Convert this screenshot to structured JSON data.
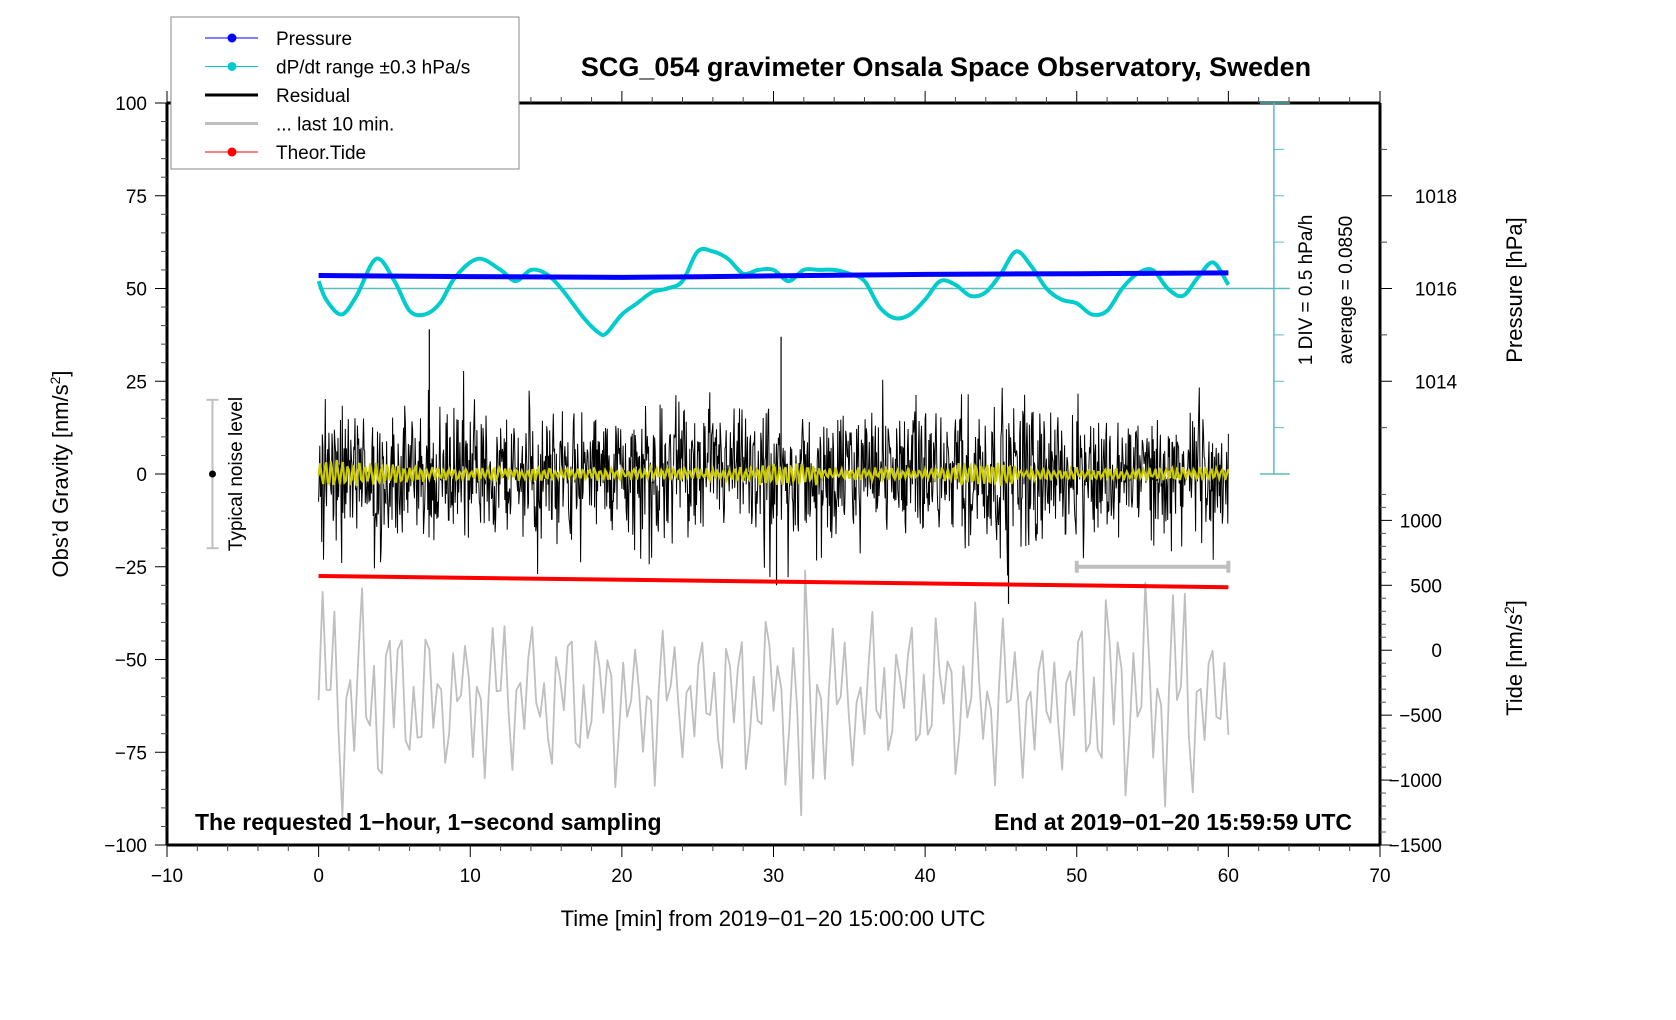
{
  "chart_data": {
    "type": "line",
    "title": "SCG_054 gravimeter Onsala Space Observatory, Sweden",
    "xlabel": "Time [min] from 2019−01−20 15:00:00 UTC",
    "ylabel": "Obs’d Gravity [nm/s²]",
    "ylabel_parts": {
      "main": "Obs’d Gravity [nm/s",
      "sup": "2",
      "end": "]"
    },
    "xlim": [
      -10,
      70
    ],
    "ylim": [
      -100,
      100
    ],
    "x_ticks": [
      -10,
      0,
      10,
      20,
      30,
      40,
      50,
      60,
      70
    ],
    "x_tick_labels": [
      "−10",
      "0",
      "10",
      "20",
      "30",
      "40",
      "50",
      "60",
      "70"
    ],
    "y_ticks": [
      100,
      75,
      50,
      25,
      0,
      -25,
      -50,
      -75,
      -100
    ],
    "y_tick_labels": [
      "100",
      "75",
      "50",
      "25",
      "0",
      "−25",
      "−50",
      "−75",
      "−100"
    ],
    "grid": false,
    "legend_position": "top-left",
    "legend": [
      {
        "label": "Pressure",
        "color": "#0000ff",
        "marker": true,
        "style": "thin"
      },
      {
        "label": "dP/dt range ±0.3 hPa/s",
        "color": "#00cccc",
        "marker": true,
        "style": "thin"
      },
      {
        "label": "Residual",
        "color": "#000000",
        "marker": false,
        "style": "thick"
      },
      {
        "label": "... last 10 min.",
        "color": "#bfbfbf",
        "marker": false,
        "style": "thick"
      },
      {
        "label": "Theor.Tide",
        "color": "#ff0000",
        "marker": true,
        "style": "thin"
      }
    ],
    "right_axis_pressure": {
      "label": "Pressure [hPa]",
      "ticks": [
        1018,
        1016,
        1014
      ],
      "tick_labels": [
        "1018",
        "1016",
        "1014"
      ],
      "range_on_left_scale": {
        "1018": 75,
        "1016": 50,
        "1014": 25
      }
    },
    "right_axis_tide": {
      "label_parts": {
        "main": "Tide [nm/s",
        "sup": "2",
        "end": "]"
      },
      "ticks": [
        1000,
        500,
        0,
        -500,
        -1000,
        -1500
      ],
      "tick_labels": [
        "1000",
        "500",
        "0",
        "−500",
        "−1000",
        "−1500"
      ],
      "range_on_left_scale": {
        "1000": -12.5,
        "-1500": -100
      }
    },
    "dpdt_scale": {
      "x_position_min": 63,
      "center_left_value": 50,
      "division_label": "1 DIV = 0.5 hPa/h",
      "average_label": "average = 0.0850",
      "span_left_values": [
        0,
        100
      ]
    },
    "noise_bar": {
      "label": "Typical noise level",
      "x_min": -7,
      "center": 0,
      "half_range": 20
    },
    "last10_bracket": {
      "x_start": 50,
      "x_end": 60,
      "y_left_value": -25
    },
    "annotations": {
      "bottom_left": "The requested 1−hour, 1−second sampling",
      "bottom_right": "End at 2019−01−20 15:59:59 UTC"
    },
    "series": [
      {
        "name": "Pressure",
        "color": "#0000ff",
        "note": "plotted on left scale (1016 hPa = 50)",
        "x": [
          0,
          10,
          20,
          30,
          40,
          50,
          60
        ],
        "y": [
          53.5,
          53.2,
          53.0,
          53.4,
          53.8,
          54.0,
          54.2
        ]
      },
      {
        "name": "dP/dt",
        "color": "#00cccc",
        "note": "plotted on left scale, centered at 50",
        "x": [
          0,
          0.5,
          1.5,
          2.5,
          3.8,
          5,
          6,
          7,
          8,
          9,
          10.5,
          12,
          13,
          14,
          15,
          16,
          17.5,
          18.5,
          19,
          20,
          21,
          22,
          23,
          24,
          25,
          26,
          27,
          28,
          29,
          30,
          31,
          32,
          33,
          34,
          35,
          36,
          37,
          38,
          39,
          40,
          41,
          42,
          43,
          44,
          45,
          46,
          47,
          48,
          49,
          50,
          51,
          52,
          53,
          54,
          55,
          56,
          57,
          58,
          59,
          60
        ],
        "y": [
          52,
          47,
          43,
          48,
          58,
          52,
          44,
          43,
          46,
          53,
          58,
          55,
          52,
          55,
          54,
          50,
          42,
          38,
          38,
          43,
          46,
          49,
          50,
          52,
          60,
          60,
          58,
          54,
          55,
          55,
          52,
          55,
          55,
          55,
          54,
          52,
          45,
          42,
          43,
          47,
          52,
          51,
          48,
          49,
          54,
          60,
          56,
          50,
          47,
          46,
          43,
          44,
          50,
          54,
          55,
          50,
          48,
          53,
          57,
          51
        ]
      },
      {
        "name": "Residual",
        "color": "#000000",
        "note": "1-second residual noise, roughly ±15 nm/s² envelope with spikes to +39 and −35",
        "envelope": [
          -20,
          20
        ],
        "spikes": [
          {
            "x": 7.3,
            "y": 39
          },
          {
            "x": 30.5,
            "y": 37
          },
          {
            "x": 45.5,
            "y": -35
          },
          {
            "x": 30.2,
            "y": -30
          }
        ]
      },
      {
        "name": "Residual (smoothed)",
        "color": "#cccc00",
        "note": "low-pass residual near zero, amplitude ~±4",
        "envelope": [
          -4,
          4
        ]
      },
      {
        "name": "Theor.Tide",
        "color": "#ff0000",
        "note": "plotted on left scale",
        "x": [
          0,
          60
        ],
        "y": [
          -27.5,
          -30.5
        ]
      },
      {
        "name": "... last 10 min.",
        "color": "#bfbfbf",
        "note": "last 10 minutes of residual stretched across 0–60, offset to −60 with amplified amplitude",
        "center": -60,
        "envelope": [
          -93,
          -26
        ]
      }
    ]
  }
}
